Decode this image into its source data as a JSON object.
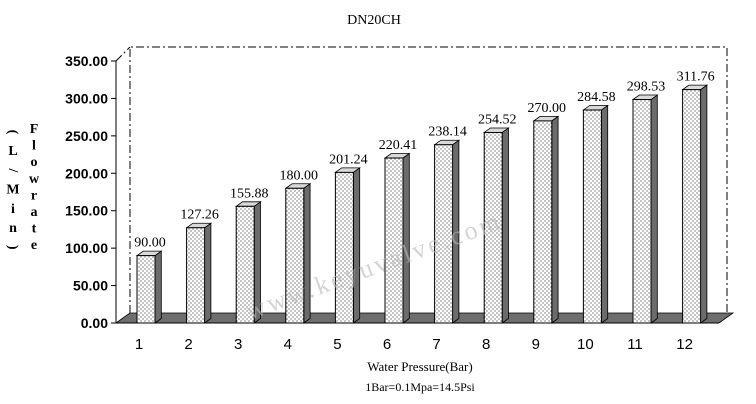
{
  "chart_data": {
    "type": "bar",
    "title": "DN20CH",
    "xlabel": "Water Pressure(Bar)",
    "xlabel_note": "1Bar=0.1Mpa=14.5Psi",
    "ylabel_left": "(L/Min)",
    "ylabel_right": "Flowrate",
    "categories": [
      "1",
      "2",
      "3",
      "4",
      "5",
      "6",
      "7",
      "8",
      "9",
      "10",
      "11",
      "12"
    ],
    "values": [
      90.0,
      127.26,
      155.88,
      180.0,
      201.24,
      220.41,
      238.14,
      254.52,
      270.0,
      284.58,
      298.53,
      311.76
    ],
    "value_labels": [
      "90.00",
      "127.26",
      "155.88",
      "180.00",
      "201.24",
      "220.41",
      "238.14",
      "254.52",
      "270.00",
      "284.58",
      "298.53",
      "311.76"
    ],
    "yticks": [
      "0.00",
      "50.00",
      "100.00",
      "150.00",
      "200.00",
      "250.00",
      "300.00",
      "350.00"
    ],
    "ylim": [
      0,
      350
    ],
    "watermark": "www.keyuvalve.com",
    "grid": false,
    "colors": {
      "bar_front": "#ffffff",
      "bar_side": "#6b6b6b",
      "bar_top": "#d9d9d9",
      "floor": "#6e6e6e",
      "text": "#000000"
    }
  }
}
